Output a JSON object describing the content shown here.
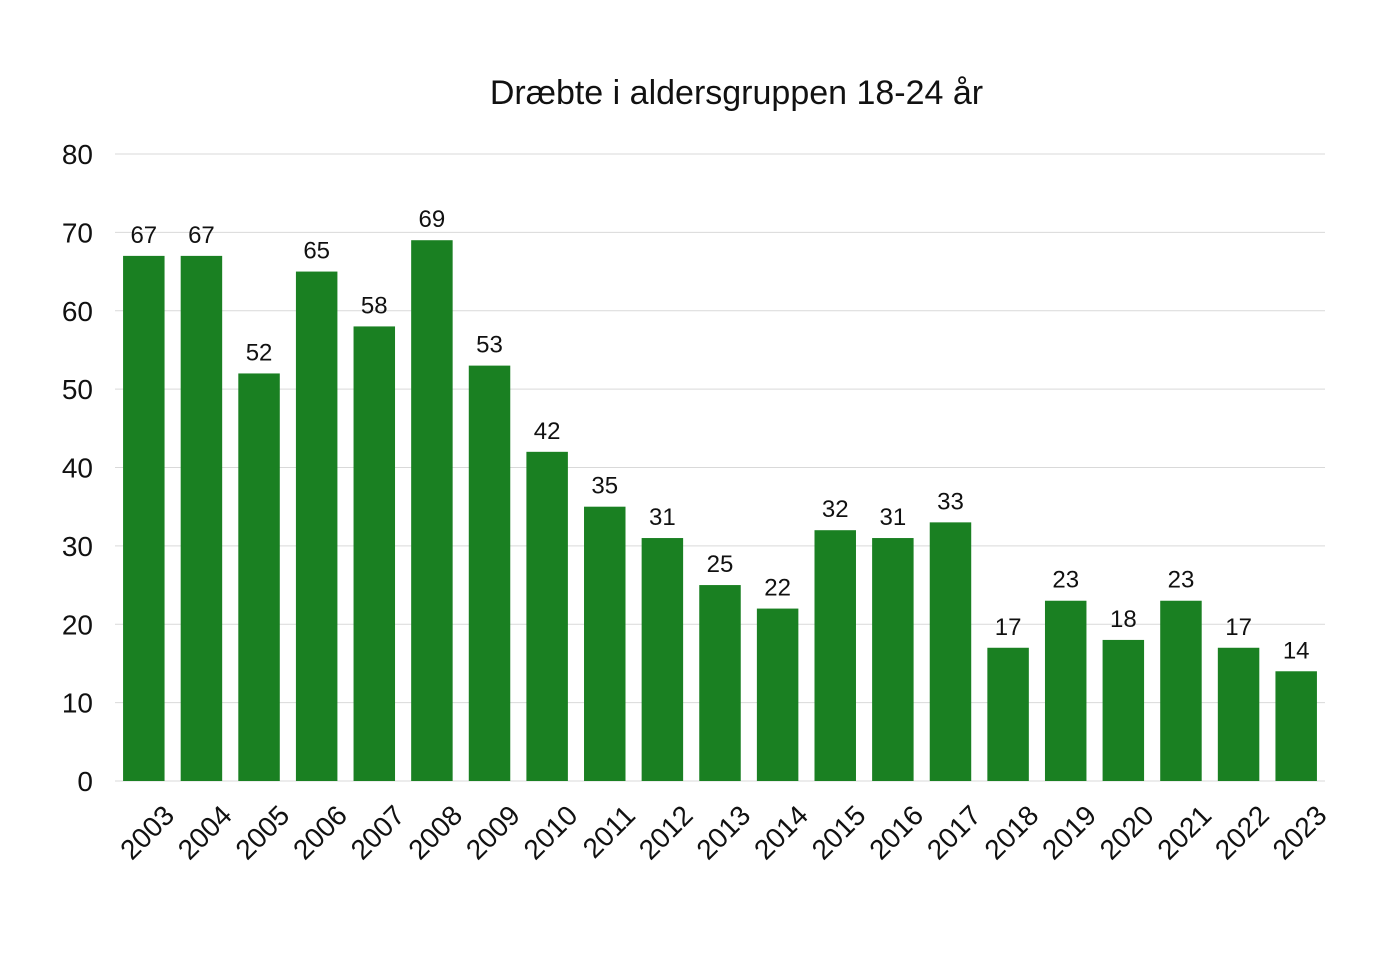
{
  "chart_data": {
    "type": "bar",
    "title": "Dræbte i aldersgruppen 18-24 år",
    "xlabel": "",
    "ylabel": "",
    "categories": [
      "2003",
      "2004",
      "2005",
      "2006",
      "2007",
      "2008",
      "2009",
      "2010",
      "2011",
      "2012",
      "2013",
      "2014",
      "2015",
      "2016",
      "2017",
      "2018",
      "2019",
      "2020",
      "2021",
      "2022",
      "2023"
    ],
    "values": [
      67,
      67,
      52,
      65,
      58,
      69,
      53,
      42,
      35,
      31,
      25,
      22,
      32,
      31,
      33,
      17,
      23,
      18,
      23,
      17,
      14
    ],
    "ylim": [
      0,
      80
    ],
    "yticks": [
      0,
      10,
      20,
      30,
      40,
      50,
      60,
      70,
      80
    ],
    "grid": true,
    "legend": "none",
    "data_labels": true,
    "x_tick_rotation": "-45deg",
    "bar_color": "#1a8022"
  }
}
